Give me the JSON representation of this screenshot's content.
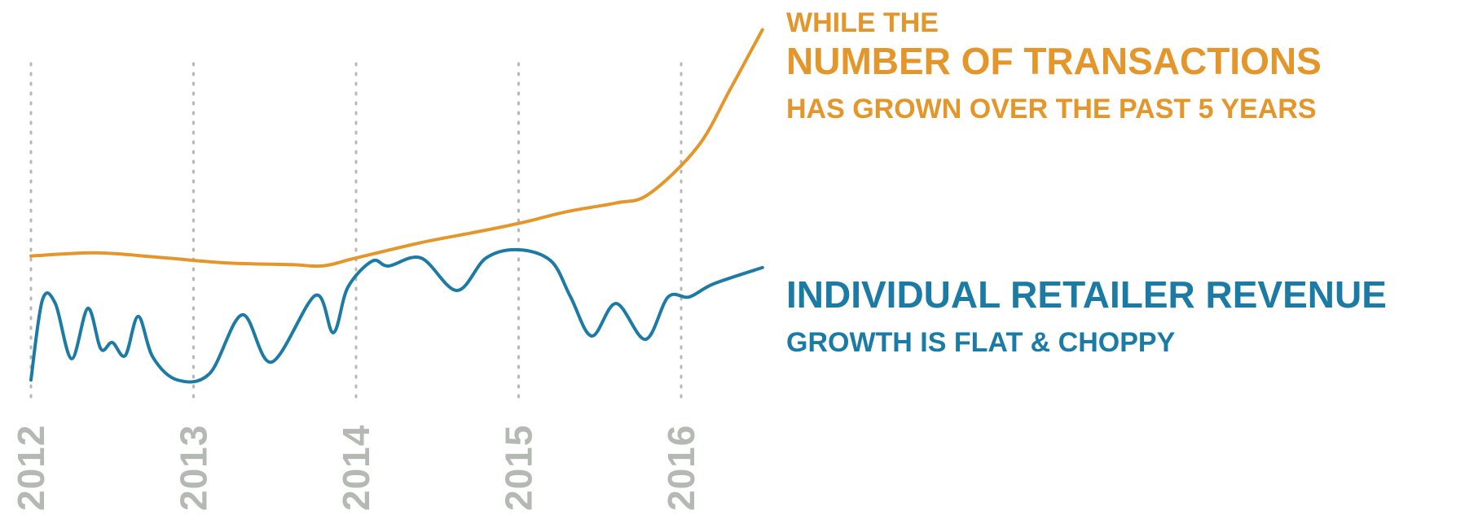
{
  "chart_data": {
    "type": "line",
    "x_ticks": [
      "2012",
      "2013",
      "2014",
      "2015",
      "2016"
    ],
    "grid": "vertical dotted at each year",
    "y_axis": "none (no scale shown)",
    "series": [
      {
        "color": "#E5962B",
        "points": [
          [
            2012.0,
            57.8
          ],
          [
            2012.4,
            59.2
          ],
          [
            2012.8,
            57.1
          ],
          [
            2013.2,
            54.7
          ],
          [
            2013.6,
            53.9
          ],
          [
            2013.8,
            53.4
          ],
          [
            2014.0,
            56.9
          ],
          [
            2014.4,
            63.8
          ],
          [
            2014.7,
            68.0
          ],
          [
            2015.0,
            72.4
          ],
          [
            2015.3,
            77.7
          ],
          [
            2015.6,
            81.6
          ],
          [
            2015.8,
            85.5
          ],
          [
            2016.1,
            106.6
          ],
          [
            2016.3,
            132.3
          ],
          [
            2016.5,
            159.3
          ]
        ]
      },
      {
        "color": "#1B7BA5",
        "points": [
          [
            2012.0,
            2.2
          ],
          [
            2012.07,
            38.0
          ],
          [
            2012.15,
            36.5
          ],
          [
            2012.25,
            11.7
          ],
          [
            2012.35,
            34.3
          ],
          [
            2012.43,
            16.1
          ],
          [
            2012.5,
            19.0
          ],
          [
            2012.58,
            13.1
          ],
          [
            2012.66,
            30.7
          ],
          [
            2012.75,
            12.4
          ],
          [
            2012.9,
            2.2
          ],
          [
            2013.1,
            5.1
          ],
          [
            2013.3,
            31.4
          ],
          [
            2013.48,
            10.2
          ],
          [
            2013.75,
            40.1
          ],
          [
            2013.86,
            23.4
          ],
          [
            2013.95,
            43.8
          ],
          [
            2014.1,
            55.5
          ],
          [
            2014.2,
            53.3
          ],
          [
            2014.4,
            56.9
          ],
          [
            2014.62,
            42.3
          ],
          [
            2014.8,
            56.9
          ],
          [
            2015.0,
            60.6
          ],
          [
            2015.2,
            55.5
          ],
          [
            2015.32,
            39.4
          ],
          [
            2015.45,
            21.9
          ],
          [
            2015.6,
            36.5
          ],
          [
            2015.78,
            20.4
          ],
          [
            2015.92,
            39.4
          ],
          [
            2016.05,
            39.4
          ],
          [
            2016.2,
            45.3
          ],
          [
            2016.5,
            52.6
          ]
        ]
      }
    ]
  },
  "annotations": {
    "transactions": {
      "line1": "WHILE THE",
      "line2": "NUMBER OF TRANSACTIONS",
      "line3": "HAS GROWN OVER THE PAST 5 YEARS",
      "color": "#E5962B"
    },
    "revenue": {
      "line1": "INDIVIDUAL RETAILER REVENUE",
      "line2": "GROWTH IS FLAT & CHOPPY",
      "color": "#1B7BA5"
    }
  },
  "colors": {
    "gridline": "#B5B8B5",
    "year_label": "#B5B9B4"
  }
}
